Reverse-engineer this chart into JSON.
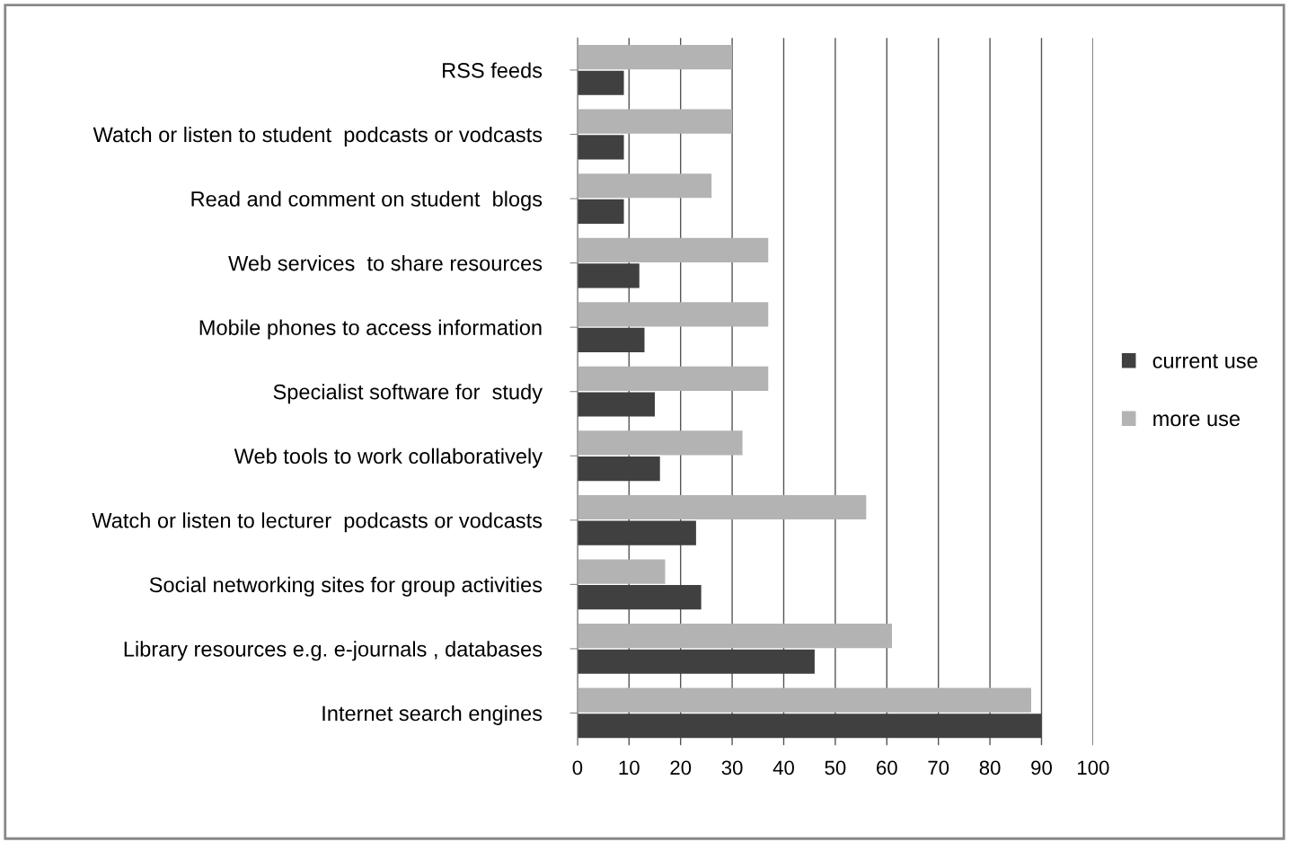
{
  "chart_data": {
    "type": "bar",
    "orientation": "horizontal",
    "categories": [
      "RSS feeds",
      "Watch or listen to student  podcasts or vodcasts",
      "Read and comment on student  blogs",
      "Web services  to share resources",
      "Mobile phones to access information",
      "Specialist software for  study",
      "Web tools to work collaboratively",
      "Watch or listen to lecturer  podcasts or vodcasts",
      "Social networking sites for group activities",
      "Library resources e.g. e-journals , databases",
      "Internet search engines"
    ],
    "series": [
      {
        "name": "more use",
        "color": "#b3b3b3",
        "values": [
          30,
          30,
          26,
          37,
          37,
          37,
          32,
          56,
          17,
          61,
          88
        ]
      },
      {
        "name": "current use",
        "color": "#404040",
        "values": [
          9,
          9,
          9,
          12,
          13,
          15,
          16,
          23,
          24,
          46,
          90
        ]
      }
    ],
    "xlim": [
      0,
      100
    ],
    "xticks": [
      0,
      10,
      20,
      30,
      40,
      50,
      60,
      70,
      80,
      90,
      100
    ],
    "grid": "x",
    "legend": "right"
  }
}
